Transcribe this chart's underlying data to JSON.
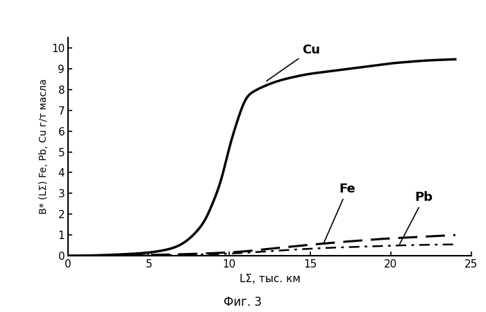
{
  "xlabel": "LΣ, тыс. км",
  "ylabel": "B* (LΣ) Fe, Pb, Cu г/т масла",
  "caption": "Фиг. 3",
  "xlim": [
    0,
    25
  ],
  "ylim": [
    0,
    10.5
  ],
  "xticks": [
    0,
    5,
    10,
    15,
    20,
    25
  ],
  "yticks": [
    0,
    1,
    2,
    3,
    4,
    5,
    6,
    7,
    8,
    9,
    10
  ],
  "background": "#ffffff",
  "Cu_label": "Cu",
  "Fe_label": "Fe",
  "Pb_label": "Pb",
  "cu_x": [
    0,
    1,
    2,
    3,
    4,
    5,
    6,
    7,
    7.5,
    8,
    8.5,
    9,
    9.5,
    10,
    10.5,
    11,
    11.5,
    12,
    13,
    14,
    15,
    16,
    17,
    18,
    19,
    20,
    21,
    22,
    23,
    24
  ],
  "cu_y": [
    0,
    0.01,
    0.03,
    0.06,
    0.1,
    0.16,
    0.28,
    0.55,
    0.82,
    1.2,
    1.75,
    2.6,
    3.7,
    5.2,
    6.5,
    7.5,
    7.9,
    8.1,
    8.4,
    8.6,
    8.75,
    8.85,
    8.95,
    9.05,
    9.15,
    9.25,
    9.32,
    9.38,
    9.42,
    9.45
  ],
  "fe_x": [
    0,
    2,
    4,
    6,
    8,
    9,
    10,
    11,
    12,
    13,
    14,
    15,
    16,
    17,
    18,
    19,
    20,
    21,
    22,
    23,
    24
  ],
  "fe_y": [
    0,
    0.01,
    0.03,
    0.06,
    0.1,
    0.13,
    0.17,
    0.22,
    0.3,
    0.38,
    0.46,
    0.53,
    0.6,
    0.67,
    0.73,
    0.79,
    0.84,
    0.88,
    0.92,
    0.96,
    1.0
  ],
  "pb_x": [
    0,
    2,
    4,
    6,
    8,
    9,
    10,
    11,
    12,
    13,
    14,
    15,
    16,
    17,
    18,
    19,
    20,
    21,
    22,
    23,
    24
  ],
  "pb_y": [
    0,
    0.005,
    0.015,
    0.03,
    0.06,
    0.08,
    0.11,
    0.15,
    0.2,
    0.25,
    0.3,
    0.34,
    0.38,
    0.41,
    0.44,
    0.46,
    0.49,
    0.51,
    0.53,
    0.54,
    0.55
  ]
}
